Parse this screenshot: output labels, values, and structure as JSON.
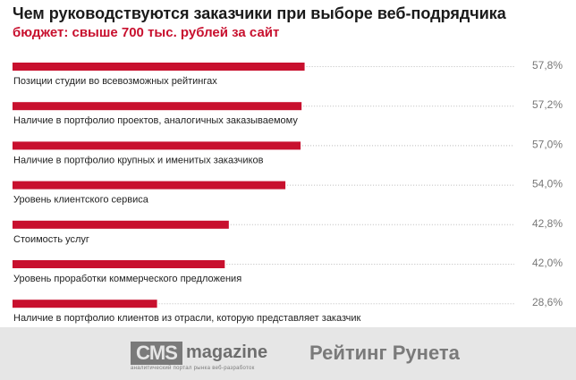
{
  "title": "Чем руководствуются заказчики при выборе веб-подрядчика",
  "subtitle": "бюджет: свыше 700 тыс. рублей за сайт",
  "colors": {
    "bar": "#c8102e",
    "dots": "#bbbbbb",
    "value": "#777777",
    "label": "#222222",
    "footer": "#e6e6e6"
  },
  "chart_data": {
    "type": "bar",
    "orientation": "horizontal",
    "categories": [
      "Позиции студии во всевозможных рейтингах",
      "Наличие в портфолио проектов, аналогичных заказываемому",
      "Наличие в портфолио крупных и именитых заказчиков",
      "Уровень клиентского сервиса",
      "Стоимость услуг",
      "Уровень проработки коммерческого предложения",
      "Наличие в портфолио клиентов из отрасли, которую представляет заказчик"
    ],
    "values": [
      57.8,
      57.2,
      57.0,
      54.0,
      42.8,
      42.0,
      28.6
    ],
    "value_labels": [
      "57,8%",
      "57,2%",
      "57,0%",
      "54,0%",
      "42,8%",
      "42,0%",
      "28,6%"
    ],
    "title": "Чем руководствуются заказчики при выборе веб-подрядчика",
    "subtitle": "бюджет: свыше 700 тыс. рублей за сайт",
    "xlim": [
      0,
      100
    ],
    "grid": false,
    "legend": "none"
  },
  "footer": {
    "cms_box": "CMS",
    "cms_word": "magazine",
    "cms_tagline": "аналитический портал рынка веб-разработок",
    "rating": "Рейтинг Рунета"
  }
}
